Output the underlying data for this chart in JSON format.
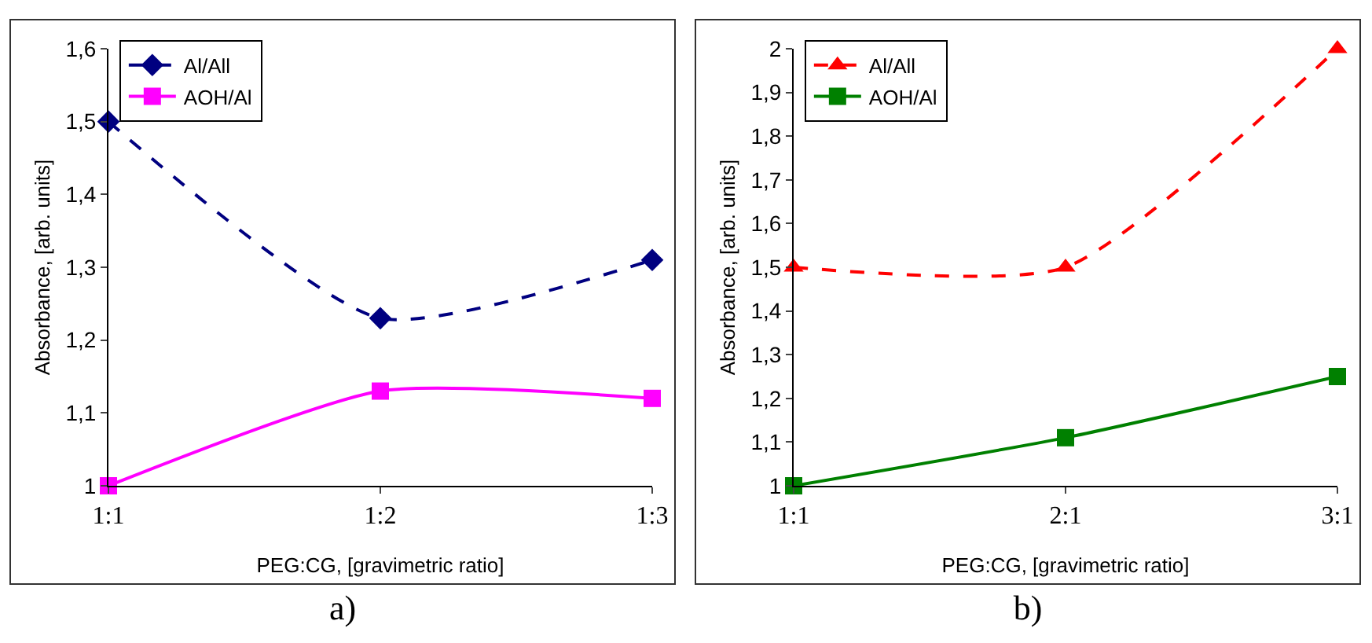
{
  "chart_data": [
    {
      "type": "line",
      "xlabel": "PEG:CG, [gravimetric ratio]",
      "ylabel": "Absorbance, [arb. units]",
      "categories": [
        "1:1",
        "1:2",
        "1:3"
      ],
      "series": [
        {
          "name": "Al/All",
          "color": "#000080",
          "values": [
            1.5,
            1.23,
            1.31
          ],
          "marker": "diamond",
          "line_style": "dashed"
        },
        {
          "name": "AOH/Al",
          "color": "#ff00ff",
          "values": [
            1.0,
            1.13,
            1.12
          ],
          "marker": "square",
          "line_style": "solid"
        }
      ],
      "ylim": [
        1,
        1.6
      ],
      "yticks": [
        {
          "value": 1,
          "label": "1"
        },
        {
          "value": 1.1,
          "label": "1,1"
        },
        {
          "value": 1.2,
          "label": "1,2"
        },
        {
          "value": 1.3,
          "label": "1,3"
        },
        {
          "value": 1.4,
          "label": "1,4"
        },
        {
          "value": 1.5,
          "label": "1,5"
        },
        {
          "value": 1.6,
          "label": "1,6"
        }
      ],
      "grid": false,
      "legend": "top left",
      "annotations": [
        "a)"
      ]
    },
    {
      "type": "line",
      "xlabel": "PEG:CG, [gravimetric ratio]",
      "ylabel": "Absorbance, [arb. units]",
      "categories": [
        "1:1",
        "2:1",
        "3:1"
      ],
      "series": [
        {
          "name": "Al/All",
          "color": "#ff0000",
          "values": [
            1.5,
            1.5,
            2.0
          ],
          "marker": "triangle",
          "line_style": "dashed"
        },
        {
          "name": "AOH/Al",
          "color": "#008000",
          "values": [
            1.0,
            1.11,
            1.25
          ],
          "marker": "square",
          "line_style": "solid"
        }
      ],
      "ylim": [
        1,
        2
      ],
      "yticks": [
        {
          "value": 1,
          "label": "1"
        },
        {
          "value": 1.1,
          "label": "1,1"
        },
        {
          "value": 1.2,
          "label": "1,2"
        },
        {
          "value": 1.3,
          "label": "1,3"
        },
        {
          "value": 1.4,
          "label": "1,4"
        },
        {
          "value": 1.5,
          "label": "1,5"
        },
        {
          "value": 1.6,
          "label": "1,6"
        },
        {
          "value": 1.7,
          "label": "1,7"
        },
        {
          "value": 1.8,
          "label": "1,8"
        },
        {
          "value": 1.9,
          "label": "1,9"
        },
        {
          "value": 2,
          "label": "2"
        }
      ],
      "grid": false,
      "legend": "top left",
      "annotations": [
        "b)"
      ]
    }
  ]
}
